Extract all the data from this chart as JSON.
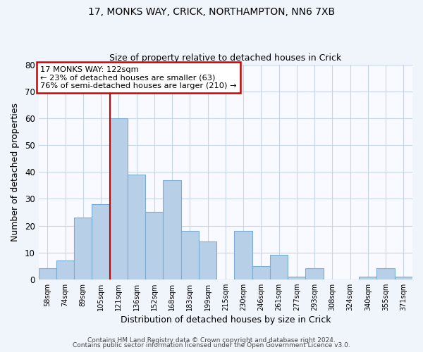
{
  "title1": "17, MONKS WAY, CRICK, NORTHAMPTON, NN6 7XB",
  "title2": "Size of property relative to detached houses in Crick",
  "xlabel": "Distribution of detached houses by size in Crick",
  "ylabel": "Number of detached properties",
  "bar_labels": [
    "58sqm",
    "74sqm",
    "89sqm",
    "105sqm",
    "121sqm",
    "136sqm",
    "152sqm",
    "168sqm",
    "183sqm",
    "199sqm",
    "215sqm",
    "230sqm",
    "246sqm",
    "261sqm",
    "277sqm",
    "293sqm",
    "308sqm",
    "324sqm",
    "340sqm",
    "355sqm",
    "371sqm"
  ],
  "bar_values": [
    4,
    7,
    23,
    28,
    60,
    39,
    25,
    37,
    18,
    14,
    0,
    18,
    5,
    9,
    1,
    4,
    0,
    0,
    1,
    4,
    1
  ],
  "bar_color": "#b8cfe8",
  "bar_edge_color": "#7aadd4",
  "vline_color": "#cc0000",
  "annotation_title": "17 MONKS WAY: 122sqm",
  "annotation_line1": "← 23% of detached houses are smaller (63)",
  "annotation_line2": "76% of semi-detached houses are larger (210) →",
  "annotation_box_color": "#cc0000",
  "ylim": [
    0,
    80
  ],
  "yticks": [
    0,
    10,
    20,
    30,
    40,
    50,
    60,
    70,
    80
  ],
  "footer1": "Contains HM Land Registry data © Crown copyright and database right 2024.",
  "footer2": "Contains public sector information licensed under the Open Government Licence v3.0.",
  "bg_color": "#f0f4fb",
  "plot_bg_color": "#f8faff",
  "grid_color": "#c8d4e8"
}
